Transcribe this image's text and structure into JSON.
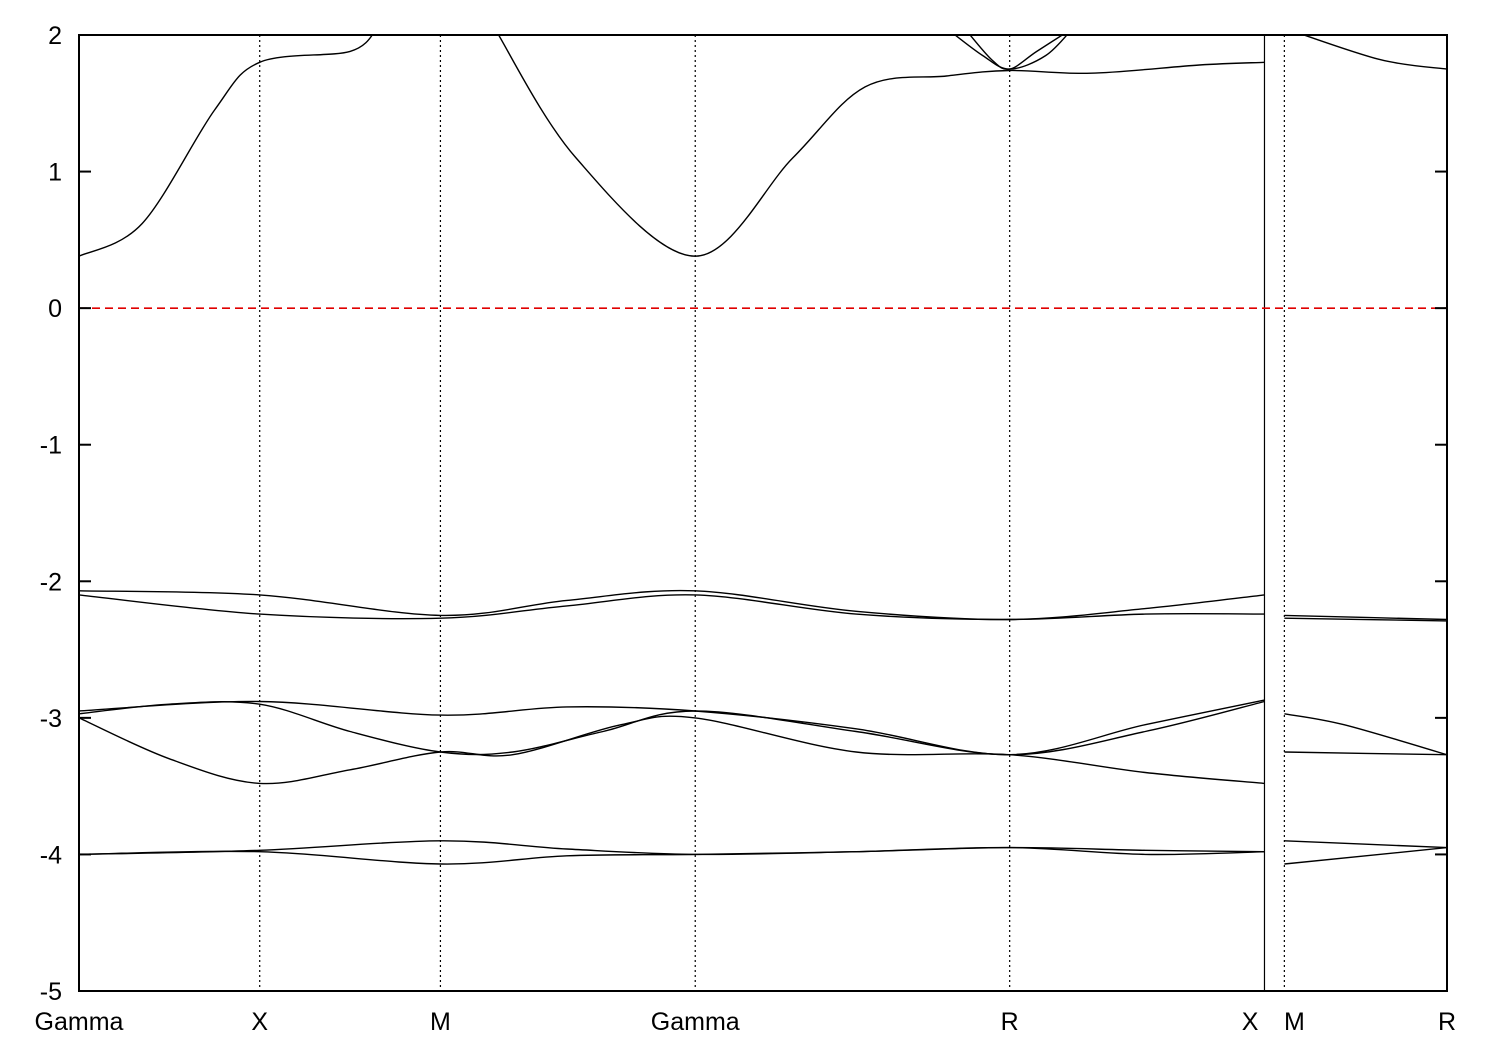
{
  "chart_data": {
    "type": "line",
    "title": "",
    "xlabel": "",
    "ylabel": "",
    "ylim": [
      -5,
      2
    ],
    "yticks": [
      2,
      1,
      0,
      -1,
      -2,
      -3,
      -4,
      -5
    ],
    "ytick_labels": [
      "2",
      "1",
      "0",
      "-1",
      "-2",
      "-3",
      "-4",
      "-5"
    ],
    "xlim": [
      0,
      7.57
    ],
    "kpoints": [
      {
        "label": "Gamma",
        "x": 0
      },
      {
        "label": "X",
        "x": 1.0
      },
      {
        "label": "M",
        "x": 2.0
      },
      {
        "label": "Gamma",
        "x": 3.41
      },
      {
        "label": "R",
        "x": 5.15
      },
      {
        "label": "X",
        "x": 6.56
      },
      {
        "label": "M",
        "x": 6.67
      },
      {
        "label": "R",
        "x": 7.57
      }
    ],
    "path_break": {
      "x": 6.56,
      "label": "X|M"
    },
    "fermi_level": {
      "y": 0,
      "color": "#e00000",
      "style": "dashed"
    },
    "line_color": "#000000",
    "grid": "vertical dotted lines at high-symmetry points",
    "series": [
      {
        "x": [
          0,
          0.35,
          0.75,
          1.0,
          1.5,
          1.65
        ],
        "y": [
          0.38,
          0.62,
          1.45,
          1.8,
          1.88,
          2.05
        ]
      },
      {
        "x": [
          2.3,
          2.75,
          3.41,
          3.95,
          4.35,
          4.8,
          5.15,
          5.6,
          6.2,
          6.56
        ],
        "y": [
          2.05,
          1.1,
          0.38,
          1.1,
          1.62,
          1.7,
          1.74,
          1.72,
          1.78,
          1.8
        ]
      },
      {
        "x": [
          4.8,
          5.0,
          5.15,
          5.35,
          5.5
        ],
        "y": [
          2.05,
          1.85,
          1.75,
          1.85,
          2.05
        ]
      },
      {
        "x": [
          4.9,
          5.05,
          5.15,
          5.3,
          5.5
        ],
        "y": [
          2.05,
          1.82,
          1.75,
          1.88,
          2.05
        ]
      },
      {
        "x": [
          6.67,
          7.2,
          7.57
        ],
        "y": [
          2.05,
          1.82,
          1.75
        ]
      },
      {
        "x": [
          0,
          1.0,
          2.0,
          2.7,
          3.41,
          4.3,
          5.15,
          5.9,
          6.56
        ],
        "y": [
          -2.07,
          -2.1,
          -2.25,
          -2.14,
          -2.07,
          -2.22,
          -2.28,
          -2.2,
          -2.1
        ]
      },
      {
        "x": [
          0,
          1.0,
          2.0,
          2.7,
          3.41,
          4.3,
          5.15,
          5.9,
          6.56
        ],
        "y": [
          -2.1,
          -2.24,
          -2.27,
          -2.18,
          -2.1,
          -2.24,
          -2.28,
          -2.24,
          -2.24
        ]
      },
      {
        "x": [
          6.67,
          7.57
        ],
        "y": [
          -2.25,
          -2.28
        ]
      },
      {
        "x": [
          6.67,
          7.57
        ],
        "y": [
          -2.27,
          -2.29
        ]
      },
      {
        "x": [
          0,
          1.0,
          2.0,
          2.7,
          3.41,
          4.3,
          5.15,
          5.9,
          6.56
        ],
        "y": [
          -2.95,
          -2.88,
          -2.98,
          -2.92,
          -2.95,
          -3.08,
          -3.27,
          -3.05,
          -2.87
        ]
      },
      {
        "x": [
          0,
          0.5,
          1.0,
          1.5,
          2.0,
          2.4,
          2.9,
          3.41,
          4.3,
          5.15,
          5.9,
          6.56
        ],
        "y": [
          -2.97,
          -2.9,
          -2.9,
          -3.1,
          -3.25,
          -3.25,
          -3.1,
          -2.95,
          -3.1,
          -3.27,
          -3.1,
          -2.88
        ]
      },
      {
        "x": [
          0,
          0.5,
          1.0,
          1.5,
          2.0,
          2.4,
          3.0,
          3.41,
          4.3,
          5.15,
          5.9,
          6.56
        ],
        "y": [
          -3.0,
          -3.3,
          -3.48,
          -3.38,
          -3.25,
          -3.27,
          -3.05,
          -3.0,
          -3.25,
          -3.27,
          -3.4,
          -3.48
        ]
      },
      {
        "x": [
          6.67,
          7.0,
          7.57
        ],
        "y": [
          -2.97,
          -3.05,
          -3.27
        ]
      },
      {
        "x": [
          6.67,
          7.57
        ],
        "y": [
          -3.25,
          -3.27
        ]
      },
      {
        "x": [
          0,
          1.0,
          2.0,
          2.7,
          3.41,
          4.3,
          5.15,
          5.9,
          6.56
        ],
        "y": [
          -4.0,
          -3.97,
          -3.9,
          -3.96,
          -4.0,
          -3.98,
          -3.95,
          -3.97,
          -3.98
        ]
      },
      {
        "x": [
          0,
          1.0,
          2.0,
          2.7,
          3.41,
          4.3,
          5.15,
          5.9,
          6.56
        ],
        "y": [
          -4.0,
          -3.98,
          -4.07,
          -4.01,
          -4.0,
          -3.98,
          -3.95,
          -4.0,
          -3.98
        ]
      },
      {
        "x": [
          6.67,
          7.57
        ],
        "y": [
          -3.9,
          -3.95
        ]
      },
      {
        "x": [
          6.67,
          7.57
        ],
        "y": [
          -4.07,
          -3.95
        ]
      }
    ]
  }
}
